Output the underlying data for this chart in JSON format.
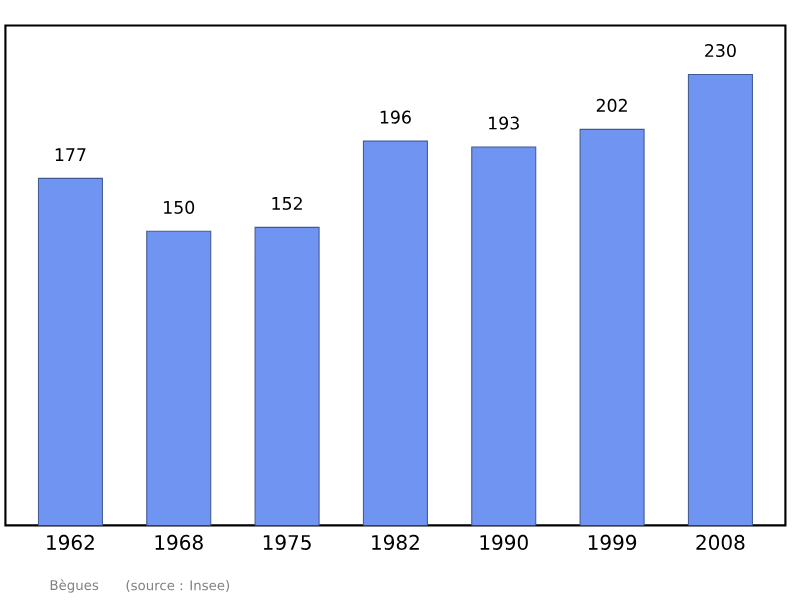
{
  "chart_data": {
    "type": "bar",
    "categories": [
      "1962",
      "1968",
      "1975",
      "1982",
      "1990",
      "1999",
      "2008"
    ],
    "values": [
      177,
      150,
      152,
      196,
      193,
      202,
      230
    ],
    "color": "#7094f2",
    "ylim": [
      0,
      255
    ],
    "data_labels": true,
    "annotations": [
      "Bègues",
      "(source : Insee)"
    ]
  }
}
